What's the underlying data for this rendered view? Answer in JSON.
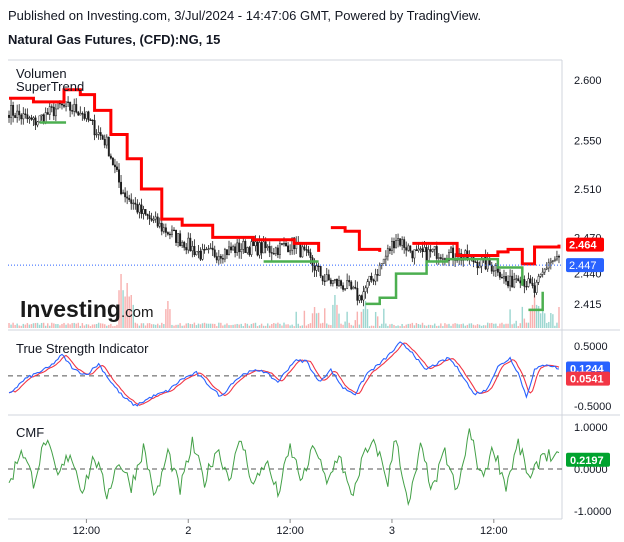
{
  "header": {
    "published": "Published on Investing.com, 3/Jul/2024 - 14:47:06 GMT, Powered by TradingView.",
    "symbol": "Natural Gas Futures, (CFD):NG, 15"
  },
  "watermark": {
    "brand": "Investing",
    "suffix": ".com"
  },
  "colors": {
    "up": "#26a69a",
    "down": "#ef5350",
    "supertrend_up": "#4caf50",
    "supertrend_down": "#ff0000",
    "tsi": "#2962ff",
    "tsi_signal": "#f23645",
    "cmf": "#43a047",
    "price_badge": "#2962ff"
  },
  "chart_data": [
    {
      "type": "candlestick",
      "pane": "price",
      "legend": [
        "Volumen",
        "SuperTrend"
      ],
      "yticks": [
        2.415,
        2.44,
        2.47,
        2.51,
        2.55,
        2.6
      ],
      "ytick_labels": [
        "2.415",
        "2.440",
        "2.470",
        "2.510",
        "2.550",
        "2.600"
      ],
      "ylim": [
        2.395,
        2.615
      ],
      "last_price": 2.447,
      "last_price_label": "2.447",
      "supertrend_label": "2.464",
      "supertrend_value": 2.464,
      "close_anchors": [
        [
          0,
          2.575
        ],
        [
          12,
          2.565
        ],
        [
          25,
          2.578
        ],
        [
          35,
          2.575
        ],
        [
          42,
          2.56
        ],
        [
          48,
          2.548
        ],
        [
          55,
          2.51
        ],
        [
          65,
          2.49
        ],
        [
          75,
          2.478
        ],
        [
          85,
          2.467
        ],
        [
          95,
          2.455
        ],
        [
          105,
          2.458
        ],
        [
          115,
          2.462
        ],
        [
          130,
          2.46
        ],
        [
          140,
          2.465
        ],
        [
          148,
          2.45
        ],
        [
          155,
          2.435
        ],
        [
          165,
          2.43
        ],
        [
          172,
          2.42
        ],
        [
          182,
          2.445
        ],
        [
          190,
          2.47
        ],
        [
          200,
          2.455
        ],
        [
          210,
          2.458
        ],
        [
          220,
          2.455
        ],
        [
          230,
          2.45
        ],
        [
          240,
          2.445
        ],
        [
          245,
          2.43
        ],
        [
          250,
          2.44
        ],
        [
          258,
          2.425
        ],
        [
          265,
          2.45
        ],
        [
          270,
          2.452
        ]
      ],
      "supertrend_segments": [
        {
          "trend": "down",
          "points": [
            [
              0,
              2.585
            ],
            [
              10,
              2.585
            ],
            [
              12,
              2.582
            ],
            [
              25,
              2.582
            ],
            [
              27,
              2.592
            ],
            [
              35,
              2.588
            ],
            [
              42,
              2.575
            ],
            [
              50,
              2.555
            ],
            [
              58,
              2.535
            ],
            [
              65,
              2.51
            ],
            [
              75,
              2.485
            ],
            [
              85,
              2.48
            ],
            [
              100,
              2.47
            ],
            [
              120,
              2.468
            ],
            [
              140,
              2.465
            ],
            [
              152,
              2.458
            ]
          ]
        },
        {
          "trend": "up",
          "points": [
            [
              15,
              2.565
            ],
            [
              28,
              2.565
            ]
          ]
        },
        {
          "trend": "up",
          "points": [
            [
              125,
              2.45
            ],
            [
              152,
              2.45
            ]
          ]
        },
        {
          "trend": "down",
          "points": [
            [
              158,
              2.478
            ],
            [
              165,
              2.475
            ],
            [
              172,
              2.46
            ],
            [
              182,
              2.458
            ]
          ]
        },
        {
          "trend": "up",
          "points": [
            [
              175,
              2.415
            ],
            [
              182,
              2.42
            ],
            [
              190,
              2.44
            ],
            [
              205,
              2.45
            ],
            [
              215,
              2.452
            ],
            [
              240,
              2.445
            ],
            [
              252,
              2.43
            ]
          ]
        },
        {
          "trend": "down",
          "points": [
            [
              198,
              2.465
            ],
            [
              220,
              2.455
            ],
            [
              240,
              2.458
            ],
            [
              245,
              2.46
            ],
            [
              252,
              2.448
            ],
            [
              258,
              2.462
            ],
            [
              270,
              2.464
            ]
          ]
        },
        {
          "trend": "up",
          "points": [
            [
              255,
              2.41
            ],
            [
              262,
              2.425
            ]
          ]
        }
      ],
      "volume_spikes": [
        [
          55,
          0.9
        ],
        [
          58,
          0.75
        ],
        [
          60,
          0.55
        ],
        [
          78,
          0.45
        ],
        [
          150,
          0.35
        ],
        [
          160,
          0.55
        ],
        [
          175,
          0.45
        ],
        [
          258,
          0.55
        ],
        [
          262,
          0.35
        ]
      ]
    },
    {
      "type": "line",
      "pane": "tsi",
      "title": "True Strength Indicator",
      "yticks": [
        -0.5,
        0,
        0.5
      ],
      "ytick_labels": [
        "-0.5000",
        "0.0000",
        "0.5000"
      ],
      "ylim": [
        -0.62,
        0.65
      ],
      "tsi_value": 0.1244,
      "tsi_label": "0.1244",
      "signal_value": 0.0541,
      "signal_label": "0.0541",
      "anchors": [
        [
          0,
          -0.3
        ],
        [
          8,
          -0.05
        ],
        [
          14,
          0.05
        ],
        [
          20,
          0.15
        ],
        [
          26,
          0.35
        ],
        [
          32,
          0.1
        ],
        [
          38,
          0.02
        ],
        [
          44,
          0.2
        ],
        [
          50,
          -0.1
        ],
        [
          56,
          -0.35
        ],
        [
          62,
          -0.5
        ],
        [
          70,
          -0.35
        ],
        [
          78,
          -0.25
        ],
        [
          85,
          -0.05
        ],
        [
          92,
          0.05
        ],
        [
          98,
          -0.15
        ],
        [
          104,
          -0.35
        ],
        [
          110,
          -0.1
        ],
        [
          116,
          0.05
        ],
        [
          124,
          0.1
        ],
        [
          132,
          -0.1
        ],
        [
          140,
          0.25
        ],
        [
          146,
          0.25
        ],
        [
          152,
          -0.1
        ],
        [
          158,
          0.1
        ],
        [
          164,
          -0.2
        ],
        [
          170,
          -0.3
        ],
        [
          176,
          0.05
        ],
        [
          182,
          0.2
        ],
        [
          188,
          0.4
        ],
        [
          192,
          0.55
        ],
        [
          198,
          0.4
        ],
        [
          204,
          0.1
        ],
        [
          210,
          0.2
        ],
        [
          216,
          0.3
        ],
        [
          222,
          0.05
        ],
        [
          228,
          -0.3
        ],
        [
          234,
          -0.25
        ],
        [
          240,
          0.15
        ],
        [
          246,
          0.3
        ],
        [
          250,
          0.05
        ],
        [
          254,
          -0.35
        ],
        [
          258,
          0.1
        ],
        [
          264,
          0.2
        ],
        [
          270,
          0.12
        ]
      ]
    },
    {
      "type": "line",
      "pane": "cmf",
      "title": "CMF",
      "yticks": [
        -1,
        0,
        1
      ],
      "ytick_labels": [
        "-1.0000",
        "0.0000",
        "1.0000"
      ],
      "ylim": [
        -1.12,
        1.12
      ],
      "cmf_value": 0.2197,
      "cmf_label": "0.2197",
      "anchors": [
        [
          0,
          -0.4
        ],
        [
          6,
          0.5
        ],
        [
          12,
          -0.3
        ],
        [
          18,
          0.7
        ],
        [
          24,
          -0.2
        ],
        [
          30,
          0.4
        ],
        [
          36,
          -0.5
        ],
        [
          42,
          0.3
        ],
        [
          48,
          -0.6
        ],
        [
          54,
          0.2
        ],
        [
          60,
          -0.4
        ],
        [
          66,
          0.5
        ],
        [
          72,
          -0.7
        ],
        [
          78,
          0.4
        ],
        [
          84,
          -0.5
        ],
        [
          90,
          0.6
        ],
        [
          96,
          -0.3
        ],
        [
          102,
          0.5
        ],
        [
          108,
          -0.2
        ],
        [
          114,
          0.7
        ],
        [
          120,
          -0.4
        ],
        [
          126,
          0.2
        ],
        [
          132,
          -0.6
        ],
        [
          138,
          0.5
        ],
        [
          144,
          -0.3
        ],
        [
          150,
          0.6
        ],
        [
          156,
          -0.4
        ],
        [
          162,
          0.4
        ],
        [
          168,
          -0.7
        ],
        [
          174,
          0.3
        ],
        [
          180,
          0.6
        ],
        [
          186,
          -0.3
        ],
        [
          190,
          0.8
        ],
        [
          196,
          -0.95
        ],
        [
          202,
          0.5
        ],
        [
          208,
          -0.5
        ],
        [
          214,
          0.4
        ],
        [
          220,
          -0.6
        ],
        [
          226,
          0.9
        ],
        [
          232,
          -0.2
        ],
        [
          238,
          0.5
        ],
        [
          244,
          -0.4
        ],
        [
          250,
          0.6
        ],
        [
          256,
          -0.3
        ],
        [
          262,
          0.4
        ],
        [
          270,
          0.22
        ]
      ]
    }
  ],
  "x_axis": {
    "labels": [
      "12:00",
      "2",
      "12:00",
      "3",
      "12:00"
    ],
    "positions": [
      38,
      88,
      138,
      188,
      238
    ]
  }
}
